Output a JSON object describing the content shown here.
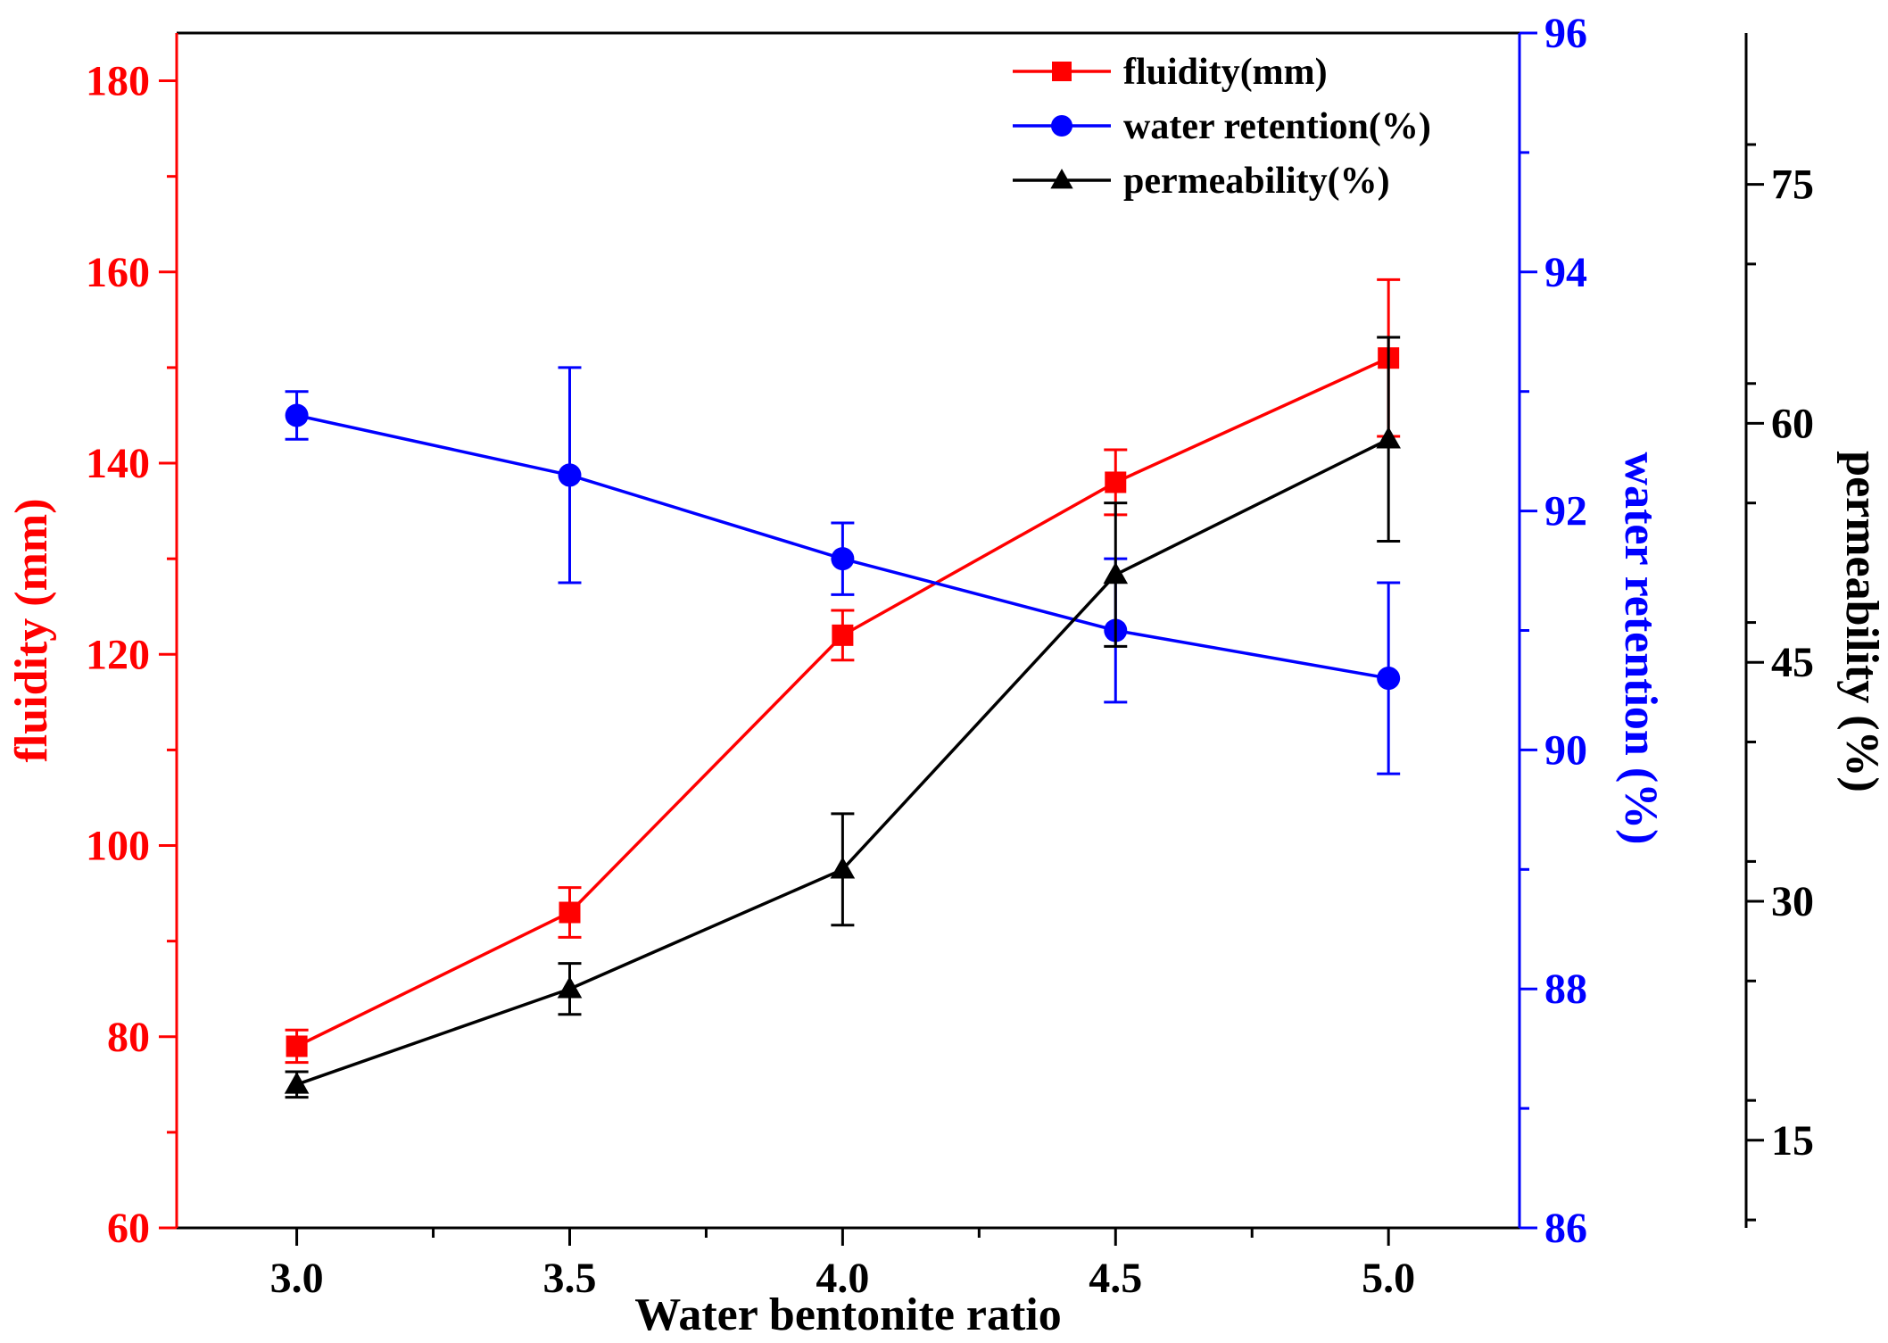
{
  "chart_data": {
    "type": "line",
    "title": "",
    "xlabel": "Water bentonite ratio",
    "x": [
      3.0,
      3.5,
      4.0,
      4.5,
      5.0
    ],
    "x_tick_labels": [
      "3.0",
      "3.5",
      "4.0",
      "4.5",
      "5.0"
    ],
    "xlim": [
      2.78,
      5.24
    ],
    "legend_position": "top-right",
    "axes": {
      "left": {
        "label": "fluidity (mm)",
        "color": "#ff0000",
        "ylim": [
          60,
          185
        ],
        "ticks": [
          60,
          80,
          100,
          120,
          140,
          160,
          180
        ]
      },
      "right": {
        "label": "water retention (%)",
        "color": "#0000ff",
        "ylim": [
          86,
          96
        ],
        "ticks": [
          86,
          88,
          90,
          92,
          94,
          96
        ]
      },
      "outer": {
        "label": "permeability (%)",
        "color": "#000000",
        "ylim": [
          9.5,
          84.5
        ],
        "ticks": [
          15,
          30,
          45,
          60,
          75
        ]
      }
    },
    "series": [
      {
        "name": "fluidity(mm)",
        "axis": "left",
        "color": "#ff0000",
        "marker": "square",
        "values": [
          79,
          93,
          122,
          138,
          151
        ],
        "errors": [
          1.7,
          2.6,
          2.6,
          3.4,
          8.2
        ]
      },
      {
        "name": "water retention(%)",
        "axis": "right",
        "color": "#0000ff",
        "marker": "circle",
        "values": [
          92.8,
          92.3,
          91.6,
          91.0,
          90.6
        ],
        "errors": [
          0.2,
          0.9,
          0.3,
          0.6,
          0.8
        ]
      },
      {
        "name": "permeability(%)",
        "axis": "outer",
        "color": "#000000",
        "marker": "triangle",
        "values": [
          18.5,
          24.5,
          32.0,
          50.5,
          59.0
        ],
        "errors": [
          0.8,
          1.6,
          3.5,
          4.5,
          6.4
        ]
      }
    ]
  }
}
